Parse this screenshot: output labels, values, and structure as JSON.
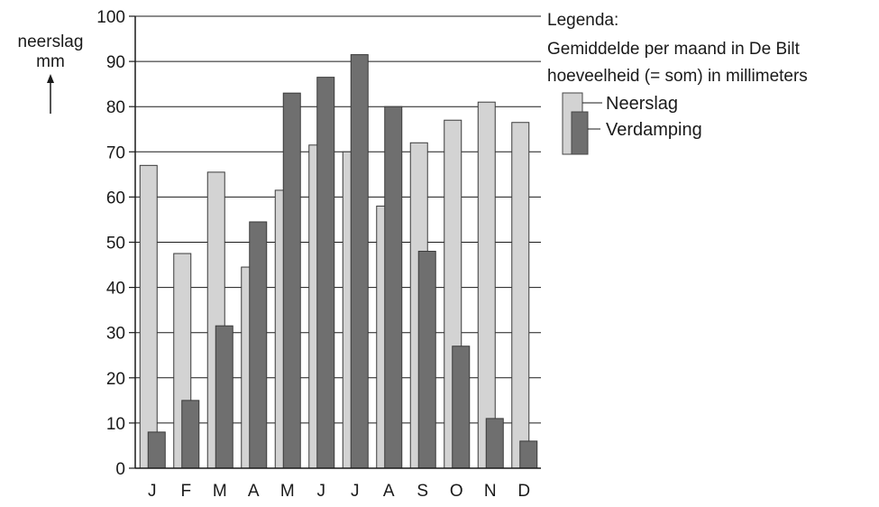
{
  "chart_data": {
    "type": "bar",
    "title": "",
    "ylabel": "neerslag mm",
    "ylabel_lines": [
      "neerslag",
      "mm"
    ],
    "xlabel": "",
    "ylim": [
      0,
      100
    ],
    "yticks": [
      0,
      10,
      20,
      30,
      40,
      50,
      60,
      70,
      80,
      90,
      100
    ],
    "grid": true,
    "legend_position": "top-right",
    "categories": [
      "J",
      "F",
      "M",
      "A",
      "M",
      "J",
      "J",
      "A",
      "S",
      "O",
      "N",
      "D"
    ],
    "series": [
      {
        "name": "Neerslag",
        "color": "#d3d3d3",
        "values": [
          67,
          47.5,
          65.5,
          44.5,
          61.5,
          71.5,
          70,
          58,
          72,
          77,
          81,
          76.5
        ]
      },
      {
        "name": "Verdamping",
        "color": "#6f6f6f",
        "values": [
          8,
          15,
          31.5,
          54.5,
          83,
          86.5,
          91.5,
          80,
          48,
          27,
          11,
          6
        ]
      }
    ],
    "legend": {
      "title": "Legenda:",
      "line1": "Gemiddelde per maand in De Bilt",
      "line2": "hoeveelheid (= som) in millimeters",
      "entries": [
        "Neerslag",
        "Verdamping"
      ]
    }
  }
}
